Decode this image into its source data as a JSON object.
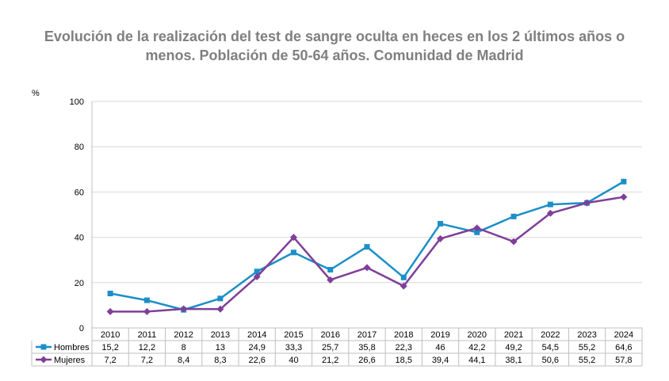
{
  "chart_data": {
    "type": "line",
    "title_line1": "Evolución de la realización del test de sangre oculta en heces en los 2 últimos años o",
    "title_line2": "menos. Población de 50-64 años. Comunidad de Madrid",
    "ylabel": "%",
    "xlabel": "",
    "ylim": [
      0,
      100
    ],
    "yticks": [
      0,
      20,
      40,
      60,
      80,
      100
    ],
    "grid": true,
    "legend": "data table below chart",
    "categories": [
      "2010",
      "2011",
      "2012",
      "2013",
      "2014",
      "2015",
      "2016",
      "2017",
      "2018",
      "2019",
      "2020",
      "2021",
      "2022",
      "2023",
      "2024"
    ],
    "series": [
      {
        "name": "Hombres",
        "color": "#1b8fc7",
        "marker": "square",
        "values": [
          15.2,
          12.2,
          8,
          13,
          24.9,
          33.3,
          25.7,
          35.8,
          22.3,
          46,
          42.2,
          49.2,
          54.5,
          55.2,
          64.6
        ],
        "labels": [
          "15,2",
          "12,2",
          "8",
          "13",
          "24,9",
          "33,3",
          "25,7",
          "35,8",
          "22,3",
          "46",
          "42,2",
          "49,2",
          "54,5",
          "55,2",
          "64,6"
        ]
      },
      {
        "name": "Mujeres",
        "color": "#7f3f98",
        "marker": "diamond",
        "values": [
          7.2,
          7.2,
          8.4,
          8.3,
          22.6,
          40,
          21.2,
          26.6,
          18.5,
          39.4,
          44.1,
          38.1,
          50.6,
          55.2,
          57.8
        ],
        "labels": [
          "7,2",
          "7,2",
          "8,4",
          "8,3",
          "22,6",
          "40",
          "21,2",
          "26,6",
          "18,5",
          "39,4",
          "44,1",
          "38,1",
          "50,6",
          "55,2",
          "57,8"
        ]
      }
    ]
  }
}
